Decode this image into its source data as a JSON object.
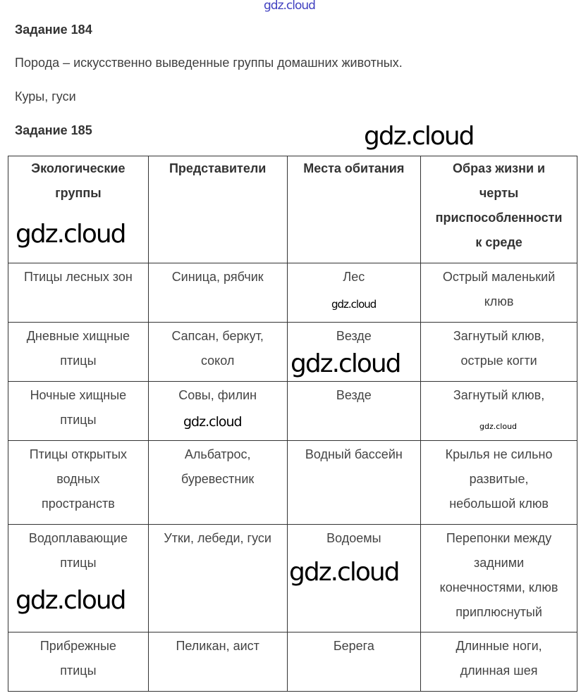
{
  "watermark": "gdz.cloud",
  "task184": {
    "title": "Задание 184",
    "text": "Порода – искусственно выведенные группы домашних животных.",
    "answer": "Куры, гуси"
  },
  "task185": {
    "title": "Задание 185",
    "table": {
      "headers": [
        "Экологические\nгруппы",
        "Представители",
        "Места обитания",
        "Образ жизни и\nчерты\nприспособленности\nк среде"
      ],
      "rows": [
        [
          "Птицы лесных зон",
          "Синица, рябчик",
          "Лес",
          "Острый маленький\nклюв"
        ],
        [
          "Дневные хищные\nптицы",
          "Сапсан, беркут,\nсокол",
          "Везде",
          "Загнутый клюв,\nострые когти"
        ],
        [
          "Ночные хищные\nптицы",
          "Совы, филин",
          "Везде",
          "Загнутый клюв,"
        ],
        [
          "Птицы открытых\nводных\nпространств",
          "Альбатрос,\nбуревестник",
          "Водный бассейн",
          "Крылья не сильно\nразвитые,\nнебольшой клюв"
        ],
        [
          "Водоплавающие\nптицы",
          "Утки, лебеди, гуси",
          "Водоемы",
          "Перепонки между\nзадними\nконечностями, клюв\nприплюснутый"
        ],
        [
          "Прибрежные\nптицы",
          "Пеликан, аист",
          "Берега",
          "Длинные ноги,\nдлинная шея"
        ]
      ]
    }
  }
}
